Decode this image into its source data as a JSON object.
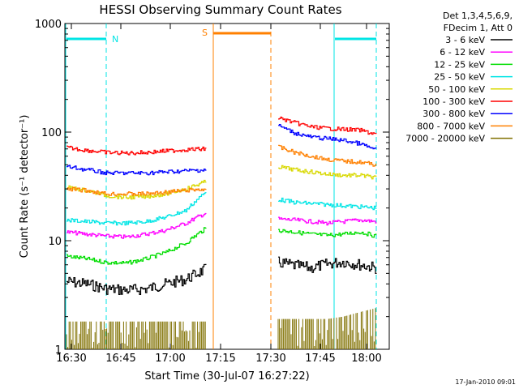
{
  "chart_data": {
    "type": "line",
    "title": "HESSI Observing Summary Count Rates",
    "xlabel": "Start Time (30-Jul-07 16:27:22)",
    "ylabel": "Count Rate (s⁻¹ detector⁻¹)",
    "y_scale": "log",
    "ylim": [
      1,
      1000
    ],
    "x_ticks": [
      "16:30",
      "16:45",
      "17:00",
      "17:15",
      "17:30",
      "17:45",
      "18:00"
    ],
    "y_ticks": [
      "1",
      "10",
      "100",
      "1000"
    ],
    "legend_header": [
      "Det 1,3,4,5,6,9,",
      "FDecim 1, Att 0"
    ],
    "footer_date": "17-Jan-2010 09:01",
    "flags": [
      {
        "label": "N",
        "color": "#00e5e5"
      },
      {
        "label": "S",
        "color": "#ff8000"
      }
    ],
    "series": [
      {
        "name": "3 - 6 keV",
        "color": "#000000",
        "seg1": [
          4.2,
          4.0,
          3.6,
          3.5,
          3.6,
          4.0,
          4.4,
          5.5
        ],
        "seg2": [
          6.3,
          5.9,
          5.6,
          6.1,
          6.4,
          6.0,
          5.6
        ]
      },
      {
        "name": "6 - 12 keV",
        "color": "#ff00ff",
        "seg1": [
          12,
          11.5,
          11,
          10.8,
          11.5,
          12.5,
          14.5,
          18
        ],
        "seg2": [
          15.8,
          15.5,
          15,
          14.5,
          15,
          15.5,
          15
        ]
      },
      {
        "name": "12 - 25 keV",
        "color": "#00dd00",
        "seg1": [
          7.2,
          6.8,
          6.3,
          6.2,
          6.8,
          7.8,
          9.5,
          13
        ],
        "seg2": [
          12.5,
          12,
          11.5,
          11.2,
          11.5,
          12,
          11
        ]
      },
      {
        "name": "25 - 50 keV",
        "color": "#00e5e5",
        "seg1": [
          15.5,
          15,
          14.5,
          14.5,
          15,
          16.5,
          19,
          28
        ],
        "seg2": [
          24,
          22.5,
          22,
          21.5,
          21,
          20.5,
          20
        ]
      },
      {
        "name": "50 - 100 keV",
        "color": "#d8d800",
        "seg1": [
          31,
          29,
          26,
          25,
          25.5,
          27,
          30,
          35
        ],
        "seg2": [
          48,
          45,
          43,
          41,
          40,
          40,
          38
        ]
      },
      {
        "name": "100 - 300 keV",
        "color": "#ff0000",
        "seg1": [
          72,
          68,
          65,
          64,
          65,
          67,
          69,
          70
        ],
        "seg2": [
          135,
          122,
          112,
          108,
          106,
          104,
          95
        ]
      },
      {
        "name": "300 - 800 keV",
        "color": "#0000ff",
        "seg1": [
          48,
          45,
          42,
          42,
          42,
          43,
          44,
          45
        ],
        "seg2": [
          115,
          98,
          90,
          87,
          84,
          78,
          68
        ]
      },
      {
        "name": "800 - 7000 keV",
        "color": "#ff8000",
        "seg1": [
          30,
          29,
          27,
          27,
          27,
          28,
          29,
          30
        ],
        "seg2": [
          73,
          65,
          60,
          56,
          54,
          53,
          50
        ]
      },
      {
        "name": "7000 - 20000 keV",
        "color": "#807000",
        "seg1": [
          1.8,
          1.8,
          1.8,
          1.8,
          1.8,
          1.8,
          1.8,
          1.8
        ],
        "seg2": [
          1.9,
          1.9,
          1.9,
          1.9,
          2.0,
          2.2,
          2.4
        ]
      }
    ]
  }
}
